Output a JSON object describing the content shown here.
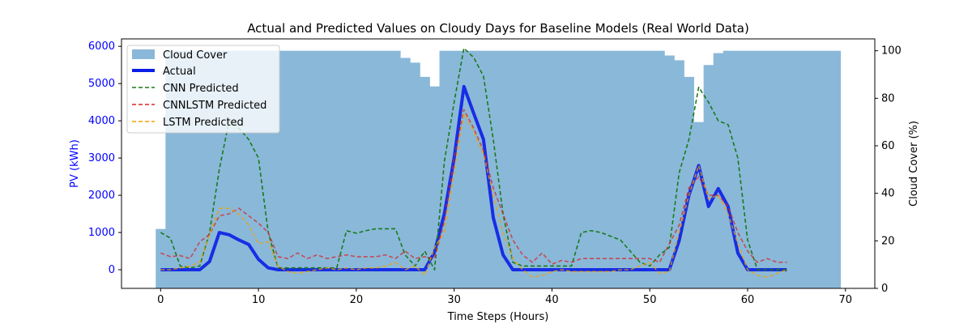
{
  "chart_data": {
    "type": "bar",
    "title": "Actual and Predicted Values on Cloudy Days for Baseline Models (Real World Data)",
    "xlabel": "Time Steps (Hours)",
    "ylabel": "PV (kWh)",
    "y2label": "Cloud Cover (%)",
    "xlim": [
      -4,
      73
    ],
    "ylim": [
      -500,
      6200
    ],
    "y2lim": [
      0,
      105
    ],
    "xticks": [
      0,
      10,
      20,
      30,
      40,
      50,
      60,
      70
    ],
    "yticks": [
      0,
      1000,
      2000,
      3000,
      4000,
      5000,
      6000
    ],
    "y2ticks": [
      0,
      20,
      40,
      60,
      80,
      100
    ],
    "legend_position": "upper-left",
    "colors": {
      "cloud": "#8ab8d9",
      "actual": "#0a1ee6",
      "cnn": "#1a7a1a",
      "cnnlstm": "#d62728",
      "lstm": "#f2a000",
      "left_axis": "#0000ff"
    },
    "cloud_cover": {
      "name": "Cloud Cover",
      "x": [
        0,
        1,
        2,
        3,
        4,
        5,
        6,
        7,
        8,
        9,
        10,
        11,
        12,
        13,
        14,
        15,
        16,
        17,
        18,
        19,
        20,
        21,
        22,
        23,
        24,
        25,
        26,
        27,
        28,
        29,
        30,
        31,
        32,
        33,
        34,
        35,
        36,
        37,
        38,
        39,
        40,
        41,
        42,
        43,
        44,
        45,
        46,
        47,
        48,
        49,
        50,
        51,
        52,
        53,
        54,
        55,
        56,
        57,
        58,
        59,
        60,
        61,
        62,
        63,
        64,
        65,
        66,
        67,
        68,
        69
      ],
      "values": [
        25,
        100,
        100,
        100,
        100,
        100,
        100,
        100,
        100,
        100,
        100,
        100,
        100,
        100,
        100,
        100,
        100,
        100,
        100,
        100,
        100,
        100,
        100,
        100,
        100,
        97,
        95,
        89,
        85,
        100,
        100,
        100,
        100,
        100,
        100,
        100,
        100,
        100,
        100,
        100,
        100,
        100,
        100,
        100,
        100,
        100,
        100,
        100,
        100,
        100,
        100,
        100,
        98,
        96,
        89,
        70,
        94,
        99,
        100,
        100,
        100,
        100,
        100,
        100,
        100,
        100,
        100,
        100,
        100,
        100
      ]
    },
    "x": [
      0,
      1,
      2,
      3,
      4,
      5,
      6,
      7,
      8,
      9,
      10,
      11,
      12,
      13,
      14,
      15,
      16,
      17,
      18,
      19,
      20,
      21,
      22,
      23,
      24,
      25,
      26,
      27,
      28,
      29,
      30,
      31,
      32,
      33,
      34,
      35,
      36,
      37,
      38,
      39,
      40,
      41,
      42,
      43,
      44,
      45,
      46,
      47,
      48,
      49,
      50,
      51,
      52,
      53,
      54,
      55,
      56,
      57,
      58,
      59,
      60,
      61,
      62,
      63,
      64
    ],
    "series": [
      {
        "name": "Actual",
        "values": [
          0,
          0,
          0,
          0,
          0,
          220,
          1000,
          940,
          800,
          680,
          280,
          50,
          0,
          0,
          0,
          0,
          0,
          0,
          0,
          0,
          0,
          0,
          0,
          0,
          0,
          0,
          0,
          0,
          480,
          1500,
          3000,
          4920,
          4200,
          3500,
          1400,
          400,
          0,
          0,
          0,
          0,
          0,
          0,
          0,
          0,
          0,
          0,
          0,
          0,
          0,
          0,
          0,
          0,
          0,
          780,
          2000,
          2800,
          1700,
          2180,
          1700,
          450,
          0,
          0,
          0,
          0,
          0
        ]
      },
      {
        "name": "CNN Predicted",
        "values": [
          1000,
          850,
          100,
          50,
          100,
          1000,
          2700,
          4000,
          3800,
          3500,
          3000,
          1000,
          50,
          50,
          50,
          50,
          50,
          50,
          50,
          1050,
          980,
          1050,
          1100,
          1100,
          1100,
          400,
          100,
          500,
          0,
          2900,
          4500,
          5950,
          5700,
          5200,
          3500,
          1500,
          200,
          100,
          100,
          100,
          100,
          100,
          100,
          1000,
          1050,
          1000,
          900,
          800,
          500,
          200,
          100,
          400,
          600,
          2600,
          3500,
          4900,
          4500,
          4000,
          3900,
          3000,
          800,
          0,
          0,
          0,
          0
        ]
      },
      {
        "name": "CNNLSTM Predicted",
        "values": [
          450,
          350,
          380,
          300,
          750,
          950,
          1450,
          1500,
          1650,
          1450,
          1250,
          1000,
          350,
          300,
          450,
          300,
          400,
          300,
          350,
          400,
          350,
          350,
          350,
          400,
          300,
          500,
          300,
          350,
          300,
          1300,
          3000,
          4300,
          3800,
          3200,
          2200,
          1500,
          800,
          400,
          200,
          450,
          150,
          250,
          200,
          300,
          300,
          300,
          300,
          300,
          300,
          300,
          300,
          200,
          700,
          1200,
          2200,
          2500,
          2000,
          2000,
          1700,
          1000,
          500,
          200,
          300,
          200,
          200
        ]
      },
      {
        "name": "LSTM Predicted",
        "values": [
          0,
          0,
          50,
          100,
          200,
          950,
          1650,
          1650,
          1500,
          1200,
          700,
          750,
          100,
          -50,
          -100,
          -50,
          0,
          50,
          0,
          50,
          0,
          50,
          50,
          100,
          200,
          0,
          100,
          -150,
          600,
          1000,
          2600,
          4200,
          3700,
          3100,
          2000,
          1000,
          300,
          0,
          -200,
          -150,
          -50,
          0,
          -50,
          -50,
          -50,
          -50,
          -50,
          0,
          0,
          100,
          200,
          -100,
          -50,
          1000,
          2000,
          2800,
          1900,
          2000,
          1500,
          700,
          0,
          -150,
          -200,
          -100,
          0
        ]
      }
    ]
  }
}
